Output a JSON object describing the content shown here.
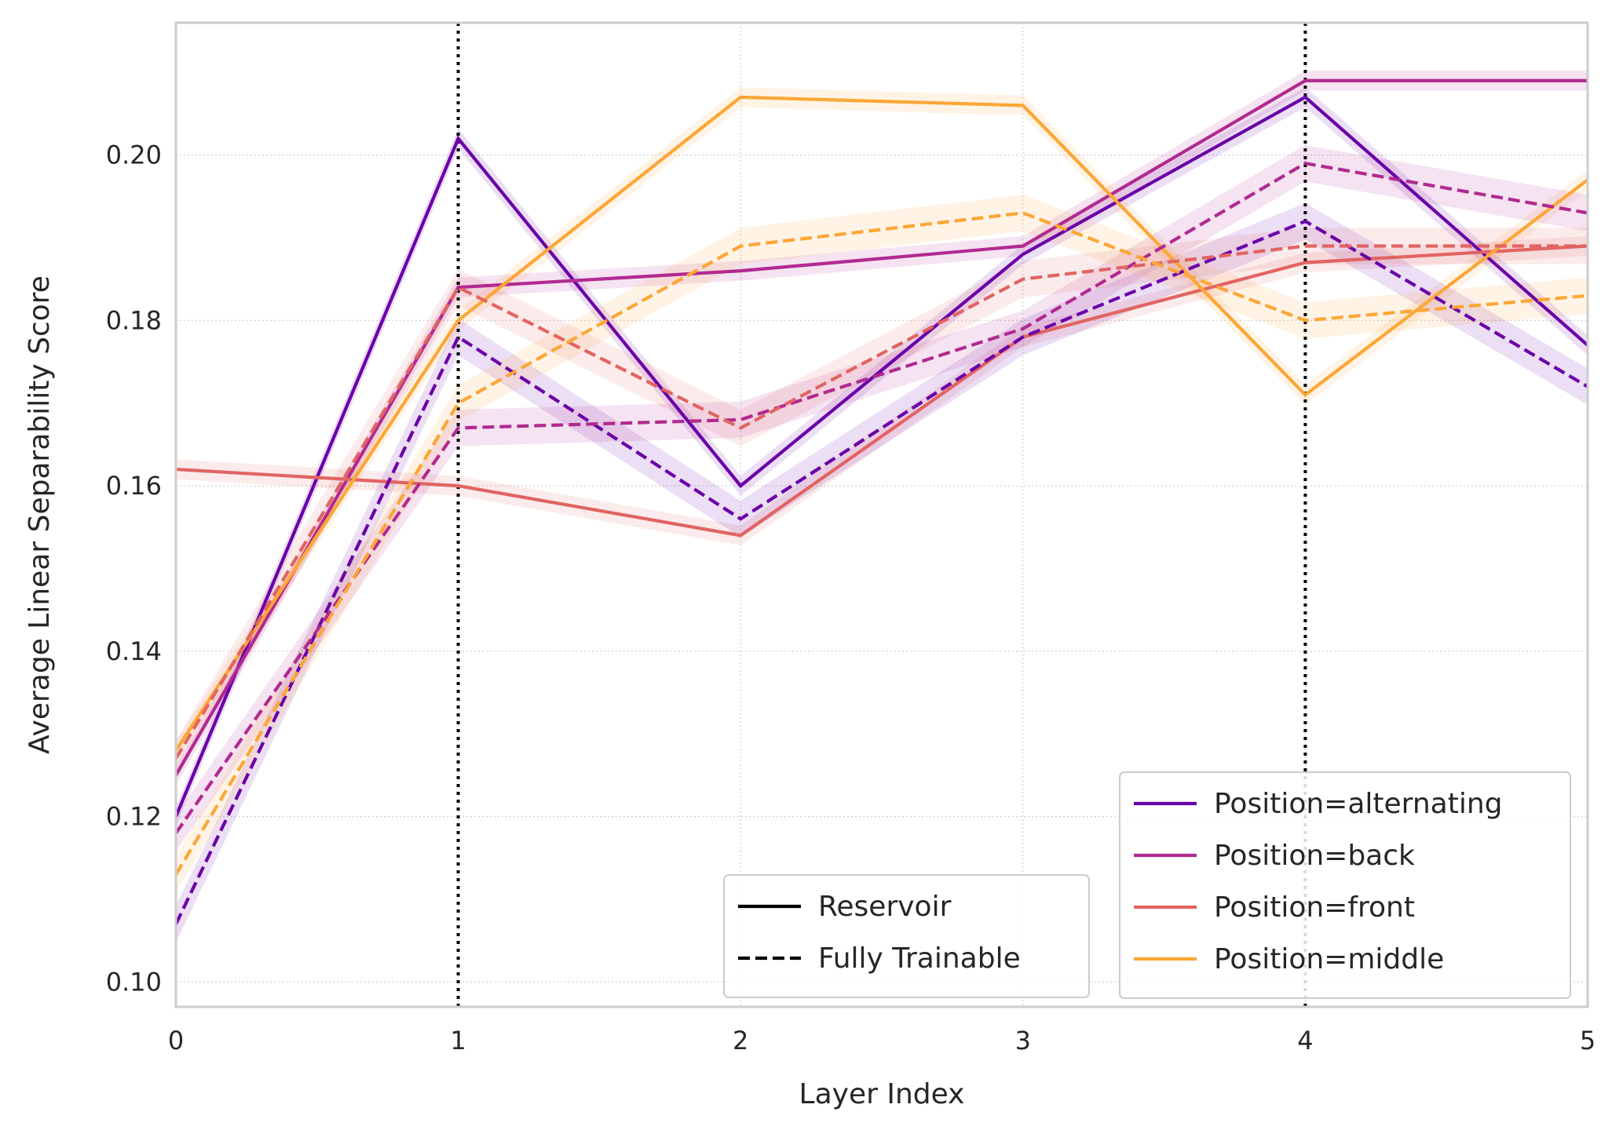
{
  "chart_data": {
    "type": "line",
    "title": "",
    "xlabel": "Layer Index",
    "ylabel": "Average Linear Separability Score",
    "xlim": [
      0,
      5
    ],
    "ylim": [
      0.097,
      0.216
    ],
    "x_ticks": [
      0,
      1,
      2,
      3,
      4,
      5
    ],
    "y_ticks": [
      0.1,
      0.12,
      0.14,
      0.16,
      0.18,
      0.2
    ],
    "grid": true,
    "vertical_markers": [
      1,
      4
    ],
    "x": [
      0,
      1,
      2,
      3,
      4,
      5
    ],
    "series": [
      {
        "name": "Position=alternating",
        "color": "#6a00a8",
        "style": "solid",
        "values": [
          0.12,
          0.202,
          0.16,
          0.188,
          0.207,
          0.177
        ]
      },
      {
        "name": "Position=back",
        "color": "#b12a90",
        "style": "solid",
        "values": [
          0.125,
          0.184,
          0.186,
          0.189,
          0.209,
          0.209
        ]
      },
      {
        "name": "Position=front",
        "color": "#e16462",
        "style": "solid",
        "values": [
          0.162,
          0.16,
          0.154,
          0.178,
          0.187,
          0.189
        ]
      },
      {
        "name": "Position=middle",
        "color": "#fca636",
        "style": "solid",
        "values": [
          0.128,
          0.18,
          0.207,
          0.206,
          0.171,
          0.197
        ]
      },
      {
        "name": "Position=alternating",
        "color": "#6a00a8",
        "style": "dashed",
        "values": [
          0.107,
          0.178,
          0.156,
          0.178,
          0.192,
          0.172
        ]
      },
      {
        "name": "Position=back",
        "color": "#b12a90",
        "style": "dashed",
        "values": [
          0.118,
          0.167,
          0.168,
          0.179,
          0.199,
          0.193
        ]
      },
      {
        "name": "Position=front",
        "color": "#e16462",
        "style": "dashed",
        "values": [
          0.127,
          0.184,
          0.167,
          0.185,
          0.189,
          0.189
        ]
      },
      {
        "name": "Position=middle",
        "color": "#fca636",
        "style": "dashed",
        "values": [
          0.113,
          0.17,
          0.189,
          0.193,
          0.18,
          0.183
        ]
      }
    ],
    "legend_style": {
      "placement": "bottom-center",
      "entries": [
        {
          "label": "Reservoir",
          "style": "solid",
          "color": "#000000"
        },
        {
          "label": "Fully Trainable",
          "style": "dashed",
          "color": "#000000"
        }
      ]
    },
    "legend_position": {
      "placement": "bottom-right",
      "entries": [
        {
          "label": "Position=alternating",
          "color": "#6a00a8"
        },
        {
          "label": "Position=back",
          "color": "#b12a90"
        },
        {
          "label": "Position=front",
          "color": "#e16462"
        },
        {
          "label": "Position=middle",
          "color": "#fca636"
        }
      ]
    }
  }
}
